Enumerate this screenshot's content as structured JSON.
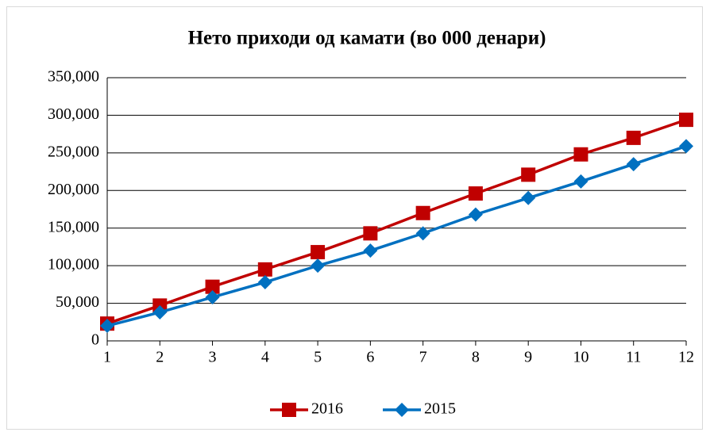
{
  "chart_data": {
    "type": "line",
    "title": "Нето приходи од камати (во 000 денари)",
    "x": [
      1,
      2,
      3,
      4,
      5,
      6,
      7,
      8,
      9,
      10,
      11,
      12
    ],
    "xlim": [
      1,
      12
    ],
    "xticks": [
      1,
      2,
      3,
      4,
      5,
      6,
      7,
      8,
      9,
      10,
      11,
      12
    ],
    "ylim": [
      0,
      350000
    ],
    "yticks": [
      0,
      {
        "value": 50000,
        "label": "50,000"
      },
      {
        "value": 100000,
        "label": "100,000"
      },
      {
        "value": 150000,
        "label": "150,000"
      },
      {
        "value": 200000,
        "label": "200,000"
      },
      {
        "value": 250000,
        "label": "250,000"
      },
      {
        "value": 300000,
        "label": "300,000"
      },
      {
        "value": 350000,
        "label": "350,000"
      }
    ],
    "grid": true,
    "legend": "bottom",
    "series": [
      {
        "name": "2016",
        "color": "#c00000",
        "marker": "square",
        "values": [
          23000,
          47000,
          72000,
          95000,
          118000,
          143000,
          170000,
          196000,
          221000,
          248000,
          270000,
          294000
        ]
      },
      {
        "name": "2015",
        "color": "#0070c0",
        "marker": "diamond",
        "values": [
          20000,
          38000,
          58000,
          78000,
          100000,
          120000,
          143000,
          168000,
          190000,
          212000,
          235000,
          259000
        ]
      }
    ]
  }
}
